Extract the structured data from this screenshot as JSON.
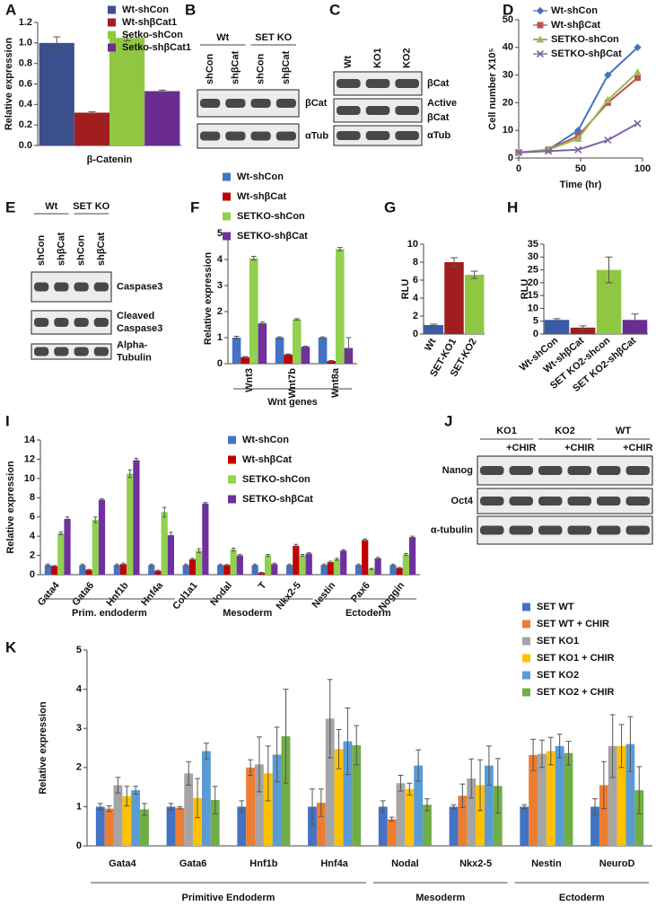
{
  "chart_data": [
    {
      "panel": "A",
      "type": "bar",
      "categories": [
        "β-Catenin"
      ],
      "series": [
        {
          "name": "Wt-shCon",
          "color": "#3b4f8c",
          "values": [
            1.0
          ],
          "errors": [
            0.06
          ]
        },
        {
          "name": "Wt-shβCat1",
          "color": "#a01e1e",
          "values": [
            0.32
          ],
          "errors": [
            0.01
          ]
        },
        {
          "name": "Setko-shCon",
          "color": "#8fc742",
          "values": [
            1.05
          ],
          "errors": [
            0.03
          ]
        },
        {
          "name": "Setko-shβCat1",
          "color": "#6a2c91",
          "values": [
            0.53
          ],
          "errors": [
            0.01
          ]
        }
      ],
      "y_label": "Relative expression",
      "ylim": [
        0,
        1.2
      ],
      "yticks": [
        {
          "value": 0,
          "label": "0.0"
        },
        0.2,
        0.4,
        0.6,
        0.8,
        {
          "value": 1,
          "label": "1.0"
        },
        1.2
      ]
    },
    {
      "panel": "D",
      "type": "line",
      "x": [
        0,
        24,
        48,
        72,
        96
      ],
      "series": [
        {
          "name": "Wt-shCon",
          "color": "#4472c4",
          "marker": "diamond",
          "values": [
            2,
            3,
            10,
            30,
            40
          ]
        },
        {
          "name": "Wt-shβCat",
          "color": "#c0504d",
          "marker": "square",
          "values": [
            2,
            3,
            8,
            20,
            29
          ]
        },
        {
          "name": "SETKO-shCon",
          "color": "#9bbb59",
          "marker": "triangle",
          "values": [
            2,
            3,
            7,
            21,
            31
          ]
        },
        {
          "name": "SETKO-shβCat",
          "color": "#8064a2",
          "marker": "x",
          "values": [
            2,
            2.5,
            3,
            6.5,
            12.5
          ]
        }
      ],
      "x_label": "Time (hr)",
      "y_label": "Cell number X10⁵",
      "xlim": [
        0,
        100
      ],
      "xticks": [
        0,
        50,
        100
      ],
      "ylim": [
        0,
        50
      ],
      "yticks": [
        0,
        10,
        20,
        30,
        40,
        50
      ]
    },
    {
      "panel": "F",
      "type": "bar",
      "categories": [
        "Wnt3",
        "Wnt7b",
        "Wnt8a"
      ],
      "series": [
        {
          "name": "Wt-shCon",
          "color": "#4472c4",
          "values": [
            1,
            1,
            1
          ],
          "errors": [
            0.05,
            0.03,
            0.03
          ]
        },
        {
          "name": "Wt-shβCat",
          "color": "#c00000",
          "values": [
            0.25,
            0.35,
            0.1
          ],
          "errors": [
            0.02,
            0.02,
            0.02
          ]
        },
        {
          "name": "SETKO-shCon",
          "color": "#92d050",
          "values": [
            4.05,
            1.7,
            4.4
          ],
          "errors": [
            0.07,
            0.03,
            0.06
          ]
        },
        {
          "name": "SETKO-shβCat",
          "color": "#7030a0",
          "values": [
            1.55,
            0.65,
            0.6
          ],
          "errors": [
            0.05,
            0.02,
            0.4
          ]
        }
      ],
      "x_label": "Wnt genes",
      "y_label": "Relative expression",
      "ylim": [
        0,
        5
      ],
      "yticks": [
        0,
        1,
        2,
        3,
        4,
        5
      ]
    },
    {
      "panel": "G",
      "type": "bar",
      "categories": [
        "Wt",
        "SET-KO1",
        "SET-KO2"
      ],
      "values": [
        1,
        8,
        6.6
      ],
      "errors": [
        0.1,
        0.5,
        0.4
      ],
      "colors": [
        "#3b5aa8",
        "#a01e1e",
        "#8fc742"
      ],
      "y_label": "RLU",
      "ylim": [
        0,
        10
      ],
      "yticks": [
        0,
        2,
        4,
        6,
        8,
        10
      ]
    },
    {
      "panel": "H",
      "type": "bar",
      "categories": [
        "Wt-shCon",
        "Wt-shβCat",
        "SET KO2-shcon",
        "SET KO2-shβCat"
      ],
      "values": [
        5.5,
        2.5,
        25,
        5.5
      ],
      "errors": [
        0.5,
        0.7,
        5,
        2.3
      ],
      "colors": [
        "#3b5aa8",
        "#a01e1e",
        "#8fc742",
        "#6a2c91"
      ],
      "y_label": "RLU",
      "ylim": [
        0,
        35
      ],
      "yticks": [
        0,
        5,
        10,
        15,
        20,
        25,
        30,
        35
      ]
    },
    {
      "panel": "I",
      "type": "bar",
      "categories": [
        "Gata4",
        "Gata6",
        "Hnf1b",
        "Hnf4a",
        "Col1a1",
        "Nodal",
        "T",
        "Nkx2-5",
        "Nestin",
        "Pax6",
        "Noggin"
      ],
      "series": [
        {
          "name": "Wt-shCon",
          "color": "#4472c4",
          "values": [
            1,
            1,
            1,
            1,
            1,
            1,
            1,
            1,
            1,
            1,
            1
          ],
          "errors": [
            0.1,
            0.1,
            0.1,
            0.1,
            0.1,
            0.1,
            0.1,
            0.1,
            0.1,
            0.1,
            0.1
          ]
        },
        {
          "name": "Wt-shβCat",
          "color": "#c00000",
          "values": [
            0.9,
            0.5,
            1.1,
            0.4,
            1.6,
            1.0,
            0.2,
            3.0,
            1.3,
            3.6,
            0.7
          ],
          "errors": [
            0.05,
            0.05,
            0.1,
            0.05,
            0.1,
            0.05,
            0.05,
            0.15,
            0.1,
            0.1,
            0.05
          ]
        },
        {
          "name": "SETKO-shCon",
          "color": "#92d050",
          "values": [
            4.3,
            5.7,
            10.5,
            6.5,
            2.5,
            2.6,
            2.0,
            2.0,
            1.6,
            0.6,
            2.1
          ],
          "errors": [
            0.15,
            0.3,
            0.4,
            0.5,
            0.2,
            0.15,
            0.1,
            0.1,
            0.1,
            0.05,
            0.1
          ]
        },
        {
          "name": "SETKO-shβCat",
          "color": "#7030a0",
          "values": [
            5.8,
            7.8,
            11.9,
            4.1,
            7.4,
            2.0,
            1.1,
            2.2,
            2.5,
            1.7,
            3.9
          ],
          "errors": [
            0.2,
            0.1,
            0.2,
            0.3,
            0.1,
            0.1,
            0.1,
            0.1,
            0.1,
            0.1,
            0.1
          ]
        }
      ],
      "groups": [
        {
          "label": "Prim. endoderm",
          "size": 4
        },
        {
          "label": "Mesoderm",
          "size": 4
        },
        {
          "label": "Ectoderm",
          "size": 3
        }
      ],
      "y_label": "Relative expression",
      "ylim": [
        0,
        14
      ],
      "yticks": [
        0,
        2,
        4,
        6,
        8,
        10,
        12,
        14
      ]
    },
    {
      "panel": "K",
      "type": "bar",
      "categories": [
        "Gata4",
        "Gata6",
        "Hnf1b",
        "Hnf4a",
        "Nodal",
        "Nkx2-5",
        "Nestin",
        "NeuroD"
      ],
      "series": [
        {
          "name": "SET WT",
          "color": "#4472c4",
          "values": [
            1,
            1,
            1,
            1,
            1,
            1,
            1,
            1
          ],
          "errors": [
            0.08,
            0.08,
            0.15,
            0.45,
            0.15,
            0.05,
            0.05,
            0.2
          ]
        },
        {
          "name": "SET WT + CHIR",
          "color": "#ed7d31",
          "values": [
            0.95,
            0.97,
            2.0,
            1.1,
            0.68,
            1.28,
            2.32,
            1.55
          ],
          "errors": [
            0.07,
            0.03,
            0.2,
            0.35,
            0.05,
            0.3,
            0.4,
            0.6
          ]
        },
        {
          "name": "SET KO1",
          "color": "#a5a5a5",
          "values": [
            1.55,
            1.85,
            2.08,
            3.25,
            1.6,
            1.72,
            2.35,
            2.55
          ],
          "errors": [
            0.2,
            0.3,
            0.7,
            1.0,
            0.2,
            0.5,
            0.35,
            0.8
          ]
        },
        {
          "name": "SET KO1 + CHIR",
          "color": "#ffc000",
          "values": [
            1.27,
            1.22,
            1.85,
            2.47,
            1.45,
            1.55,
            2.42,
            2.55
          ],
          "errors": [
            0.25,
            0.5,
            0.7,
            0.5,
            0.15,
            0.65,
            0.35,
            0.55
          ]
        },
        {
          "name": "SET KO2",
          "color": "#5b9bd5",
          "values": [
            1.42,
            2.42,
            2.33,
            2.67,
            2.05,
            2.05,
            2.55,
            2.6
          ],
          "errors": [
            0.1,
            0.2,
            0.7,
            0.85,
            0.4,
            0.5,
            0.3,
            0.7
          ]
        },
        {
          "name": "SET KO2 + CHIR",
          "color": "#70ad47",
          "values": [
            0.93,
            1.17,
            2.8,
            2.57,
            1.05,
            1.53,
            2.37,
            1.42
          ],
          "errors": [
            0.15,
            0.35,
            1.2,
            0.5,
            0.15,
            0.7,
            0.3,
            0.6
          ]
        }
      ],
      "groups": [
        {
          "label": "Primitive Endoderm",
          "size": 4
        },
        {
          "label": "Mesoderm",
          "size": 2
        },
        {
          "label": "Ectoderm",
          "size": 2
        }
      ],
      "y_label": "Relative expression",
      "ylim": [
        0,
        5
      ],
      "yticks": [
        0,
        1,
        2,
        3,
        4,
        5
      ]
    }
  ],
  "blots": [
    {
      "panel": "B",
      "groups": [
        {
          "label": "Wt",
          "size": 2
        },
        {
          "label": "SET KO",
          "size": 2
        }
      ],
      "lane_labels": [
        "shCon",
        "shβCat",
        "shCon",
        "shβCat"
      ],
      "rows": [
        [
          "βCat"
        ],
        [
          "αTub"
        ]
      ]
    },
    {
      "panel": "C",
      "lane_labels": [
        "Wt",
        "KO1",
        "KO2"
      ],
      "rows": [
        [
          "βCat"
        ],
        [
          "Active",
          "βCat"
        ],
        [
          "αTub"
        ]
      ]
    },
    {
      "panel": "E",
      "groups": [
        {
          "label": "Wt",
          "size": 2
        },
        {
          "label": "SET KO",
          "size": 2
        }
      ],
      "lane_labels": [
        "shCon",
        "shβCat",
        "shCon",
        "shβCat"
      ],
      "rows": [
        [
          "Caspase3"
        ],
        [
          "Cleaved",
          "Caspase3"
        ],
        [
          "Alpha-",
          "Tubulin"
        ]
      ]
    },
    {
      "panel": "J",
      "groups": [
        {
          "label": "KO1",
          "size": 2
        },
        {
          "label": "KO2",
          "size": 2
        },
        {
          "label": "WT",
          "size": 2
        }
      ],
      "lane_labels": [
        "+CHIR",
        "+CHIR",
        "+CHIR"
      ],
      "rows": [
        [
          "Nanog"
        ],
        [
          "Oct4"
        ],
        [
          "α-tubulin"
        ]
      ]
    }
  ]
}
